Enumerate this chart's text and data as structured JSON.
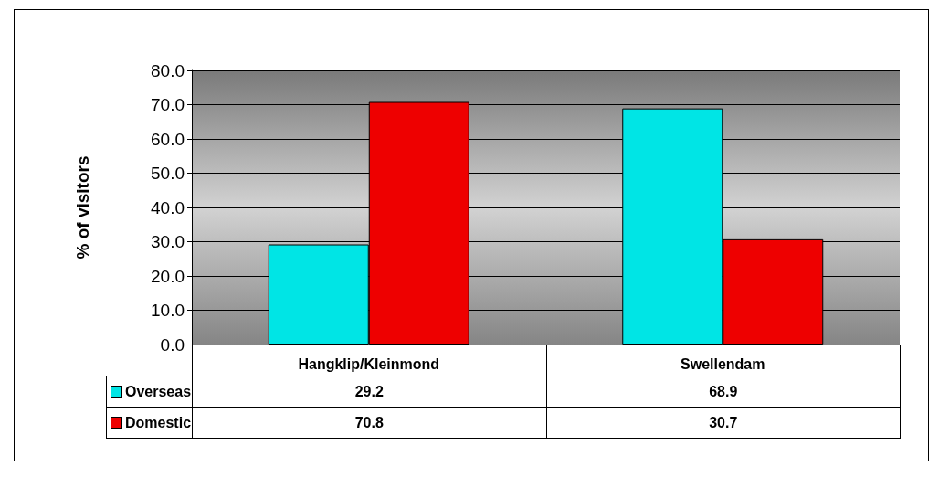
{
  "chart_data": {
    "type": "bar",
    "ylabel": "% of visitors",
    "categories": [
      "Hangklip/Kleinmond",
      "Swellendam"
    ],
    "series": [
      {
        "name": "Overseas",
        "color": "#00e5e5",
        "values": [
          29.2,
          68.9
        ]
      },
      {
        "name": "Domestic",
        "color": "#ee0000",
        "values": [
          70.8,
          30.7
        ]
      }
    ],
    "ylim": [
      0,
      80
    ],
    "yticks": [
      {
        "value": 0,
        "label": "0.0"
      },
      {
        "value": 10,
        "label": "10.0"
      },
      {
        "value": 20,
        "label": "20.0"
      },
      {
        "value": 30,
        "label": "30.0"
      },
      {
        "value": 40,
        "label": "40.0"
      },
      {
        "value": 50,
        "label": "50.0"
      },
      {
        "value": 60,
        "label": "60.0"
      },
      {
        "value": 70,
        "label": "70.0"
      },
      {
        "value": 80,
        "label": "80.0"
      }
    ],
    "grid": "y",
    "legend": "bottom left",
    "data_labels": true
  }
}
